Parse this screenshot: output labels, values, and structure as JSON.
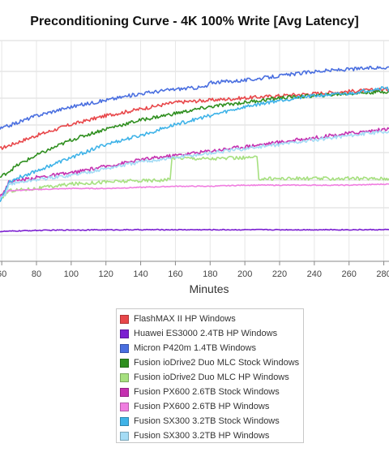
{
  "chart_data": {
    "type": "line",
    "title": "Preconditioning Curve - 4K 100% Write [Avg Latency]",
    "xlabel": "Minutes",
    "ylabel": "",
    "xlim": [
      59,
      283
    ],
    "ylim": [
      0,
      1
    ],
    "x_ticks": [
      60,
      80,
      100,
      120,
      140,
      160,
      180,
      200,
      220,
      240,
      260,
      280
    ],
    "x_tick_labels": [
      "60",
      "80",
      "100",
      "120",
      "140",
      "160",
      "180",
      "200",
      "220",
      "240",
      "260",
      "280"
    ],
    "grid": true,
    "legend_position": "bottom",
    "series": [
      {
        "name": "FlashMAX II HP Windows",
        "color": "#e8474a",
        "x": [
          59,
          80,
          100,
          120,
          140,
          160,
          180,
          200,
          220,
          240,
          260,
          283
        ],
        "y": [
          0.51,
          0.57,
          0.62,
          0.66,
          0.69,
          0.72,
          0.73,
          0.74,
          0.75,
          0.76,
          0.77,
          0.78
        ]
      },
      {
        "name": "Huawei ES3000 2.4TB HP Windows",
        "color": "#7b1fd1",
        "x": [
          59,
          80,
          100,
          140,
          180,
          220,
          260,
          283
        ],
        "y": [
          0.135,
          0.14,
          0.142,
          0.143,
          0.143,
          0.143,
          0.143,
          0.143
        ]
      },
      {
        "name": "Micron P420m 1.4TB Windows",
        "color": "#4a6fe0",
        "x": [
          59,
          80,
          100,
          120,
          140,
          160,
          178,
          180,
          200,
          220,
          240,
          260,
          283
        ],
        "y": [
          0.6,
          0.66,
          0.7,
          0.73,
          0.76,
          0.78,
          0.79,
          0.81,
          0.82,
          0.84,
          0.86,
          0.87,
          0.88
        ]
      },
      {
        "name": "Fusion ioDrive2 Duo MLC Stock Windows",
        "color": "#2f8f1f",
        "x": [
          59,
          70,
          80,
          100,
          120,
          140,
          160,
          180,
          200,
          220,
          240,
          260,
          283
        ],
        "y": [
          0.38,
          0.44,
          0.48,
          0.55,
          0.6,
          0.64,
          0.67,
          0.7,
          0.72,
          0.74,
          0.75,
          0.76,
          0.77
        ]
      },
      {
        "name": "Fusion ioDrive2 Duo MLC HP Windows",
        "color": "#a6e07f",
        "x": [
          59,
          62,
          64,
          80,
          100,
          120,
          140,
          157,
          158,
          180,
          207,
          208,
          220,
          240,
          260,
          283
        ],
        "y": [
          0.285,
          0.3,
          0.32,
          0.33,
          0.35,
          0.36,
          0.365,
          0.37,
          0.47,
          0.465,
          0.47,
          0.375,
          0.375,
          0.375,
          0.375,
          0.375
        ]
      },
      {
        "name": "Fusion PX600 2.6TB Stock Windows",
        "color": "#c531b0",
        "x": [
          59,
          62,
          64,
          80,
          100,
          120,
          140,
          160,
          180,
          200,
          220,
          240,
          260,
          283
        ],
        "y": [
          0.3,
          0.32,
          0.36,
          0.38,
          0.4,
          0.43,
          0.46,
          0.48,
          0.5,
          0.52,
          0.54,
          0.56,
          0.58,
          0.6
        ]
      },
      {
        "name": "Fusion PX600 2.6TB HP Windows",
        "color": "#f07ee0",
        "x": [
          59,
          62,
          64,
          80,
          100,
          120,
          140,
          160,
          180,
          200,
          220,
          240,
          260,
          283
        ],
        "y": [
          0.29,
          0.31,
          0.32,
          0.325,
          0.33,
          0.33,
          0.335,
          0.34,
          0.34,
          0.345,
          0.345,
          0.345,
          0.345,
          0.35
        ]
      },
      {
        "name": "Fusion SX300 3.2TB Stock Windows",
        "color": "#3fb3e8",
        "x": [
          59,
          62,
          64,
          70,
          80,
          90,
          100,
          110,
          120,
          140,
          160,
          180,
          200,
          220,
          240,
          260,
          282,
          283
        ],
        "y": [
          0.27,
          0.32,
          0.36,
          0.38,
          0.41,
          0.44,
          0.47,
          0.5,
          0.53,
          0.57,
          0.62,
          0.66,
          0.7,
          0.73,
          0.75,
          0.76,
          0.79,
          0.77
        ]
      },
      {
        "name": "Fusion SX300 3.2TB HP Windows",
        "color": "#a4dcf5",
        "x": [
          59,
          62,
          64,
          80,
          100,
          120,
          140,
          160,
          180,
          200,
          220,
          240,
          260,
          283
        ],
        "y": [
          0.28,
          0.3,
          0.35,
          0.37,
          0.39,
          0.42,
          0.45,
          0.47,
          0.49,
          0.51,
          0.53,
          0.55,
          0.57,
          0.59
        ]
      }
    ]
  }
}
